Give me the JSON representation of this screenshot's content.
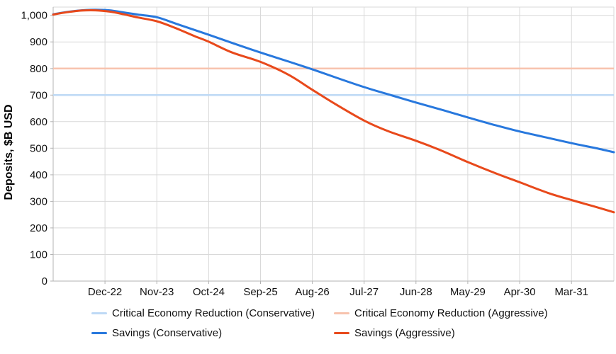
{
  "chart_data": {
    "type": "line",
    "title": "",
    "xlabel": "",
    "ylabel": "Deposits, $B USD",
    "x_unit": "month",
    "x_start_month": "Jan-22",
    "x_end_month": "Dec-31",
    "months_total": 120,
    "grid": true,
    "legend_position": "bottom",
    "ylim": [
      0,
      1031
    ],
    "y_tick_values": [
      0,
      100,
      200,
      300,
      400,
      500,
      600,
      700,
      800,
      900,
      1000
    ],
    "y_tick_labels": [
      "0",
      "100",
      "200",
      "300",
      "400",
      "500",
      "600",
      "700",
      "800",
      "900",
      "1,000"
    ],
    "x_ticks": [
      {
        "label": "Dec-22",
        "month_index": 11
      },
      {
        "label": "Nov-23",
        "month_index": 22
      },
      {
        "label": "Oct-24",
        "month_index": 33
      },
      {
        "label": "Sep-25",
        "month_index": 44
      },
      {
        "label": "Aug-26",
        "month_index": 55
      },
      {
        "label": "Jul-27",
        "month_index": 66
      },
      {
        "label": "Jun-28",
        "month_index": 77
      },
      {
        "label": "May-29",
        "month_index": 88
      },
      {
        "label": "Apr-30",
        "month_index": 99
      },
      {
        "label": "Mar-31",
        "month_index": 110
      }
    ],
    "series": [
      {
        "name": "Critical Economy Reduction (Conservative)",
        "kind": "reference-line",
        "value": 700,
        "color": "#bed9f5"
      },
      {
        "name": "Critical Economy Reduction (Aggressive)",
        "kind": "reference-line",
        "value": 800,
        "color": "#f7c3ae"
      },
      {
        "name": "Savings (Conservative)",
        "kind": "curve",
        "color": "#2878dd",
        "months": [
          "Jan-22",
          "Apr-22",
          "Jul-22",
          "Oct-22",
          "Jan-23",
          "Apr-23",
          "Jul-23",
          "Nov-23",
          "Mar-24",
          "Jul-24",
          "Oct-24",
          "Mar-25",
          "Sep-25",
          "Mar-26",
          "Aug-26",
          "Jan-27",
          "Jul-27",
          "Jan-28",
          "Jun-28",
          "Dec-28",
          "May-29",
          "Nov-29",
          "Apr-30",
          "Oct-30",
          "Mar-31",
          "Aug-31",
          "Dec-31"
        ],
        "month_indices": [
          0,
          3,
          6,
          9,
          12,
          15,
          18,
          22,
          26,
          30,
          33,
          38,
          44,
          50,
          55,
          60,
          66,
          72,
          77,
          83,
          88,
          94,
          99,
          105,
          110,
          115,
          119
        ],
        "values": [
          1004,
          1013,
          1019,
          1021,
          1019,
          1011,
          1003,
          993,
          969,
          945,
          927,
          896,
          860,
          826,
          797,
          766,
          730,
          698,
          672,
          642,
          616,
          586,
          563,
          539,
          519,
          501,
          485
        ]
      },
      {
        "name": "Savings (Aggressive)",
        "kind": "curve",
        "color": "#e8491b",
        "months": [
          "Jan-22",
          "Apr-22",
          "Jul-22",
          "Oct-22",
          "Jan-23",
          "Apr-23",
          "Jul-23",
          "Nov-23",
          "Mar-24",
          "Jul-24",
          "Oct-24",
          "Mar-25",
          "Sep-25",
          "Mar-26",
          "Aug-26",
          "Jan-27",
          "Jul-27",
          "Dec-27",
          "Jun-28",
          "Nov-28",
          "May-29",
          "Nov-29",
          "Apr-30",
          "Oct-30",
          "Mar-31",
          "Aug-31",
          "Dec-31"
        ],
        "month_indices": [
          0,
          3,
          6,
          9,
          12,
          15,
          18,
          22,
          26,
          30,
          33,
          38,
          44,
          50,
          55,
          60,
          66,
          71,
          77,
          82,
          88,
          94,
          99,
          105,
          110,
          115,
          119
        ],
        "values": [
          1003,
          1012,
          1018,
          1019,
          1014,
          1004,
          992,
          978,
          952,
          922,
          901,
          860,
          825,
          776,
          720,
          665,
          604,
          565,
          528,
          494,
          448,
          405,
          372,
          332,
          305,
          280,
          259
        ]
      }
    ],
    "legend_order": [
      "Critical Economy Reduction (Conservative)",
      "Critical Economy Reduction (Aggressive)",
      "Savings (Conservative)",
      "Savings (Aggressive)"
    ]
  },
  "colors": {
    "background": "#ffffff",
    "gridline": "#d9d9d9",
    "axis_line": "#b3b3b3",
    "tick_text": "#111111",
    "series_conservative": "#2878dd",
    "series_aggressive": "#e8491b",
    "reference_conservative": "#bed9f5",
    "reference_aggressive": "#f7c3ae"
  }
}
